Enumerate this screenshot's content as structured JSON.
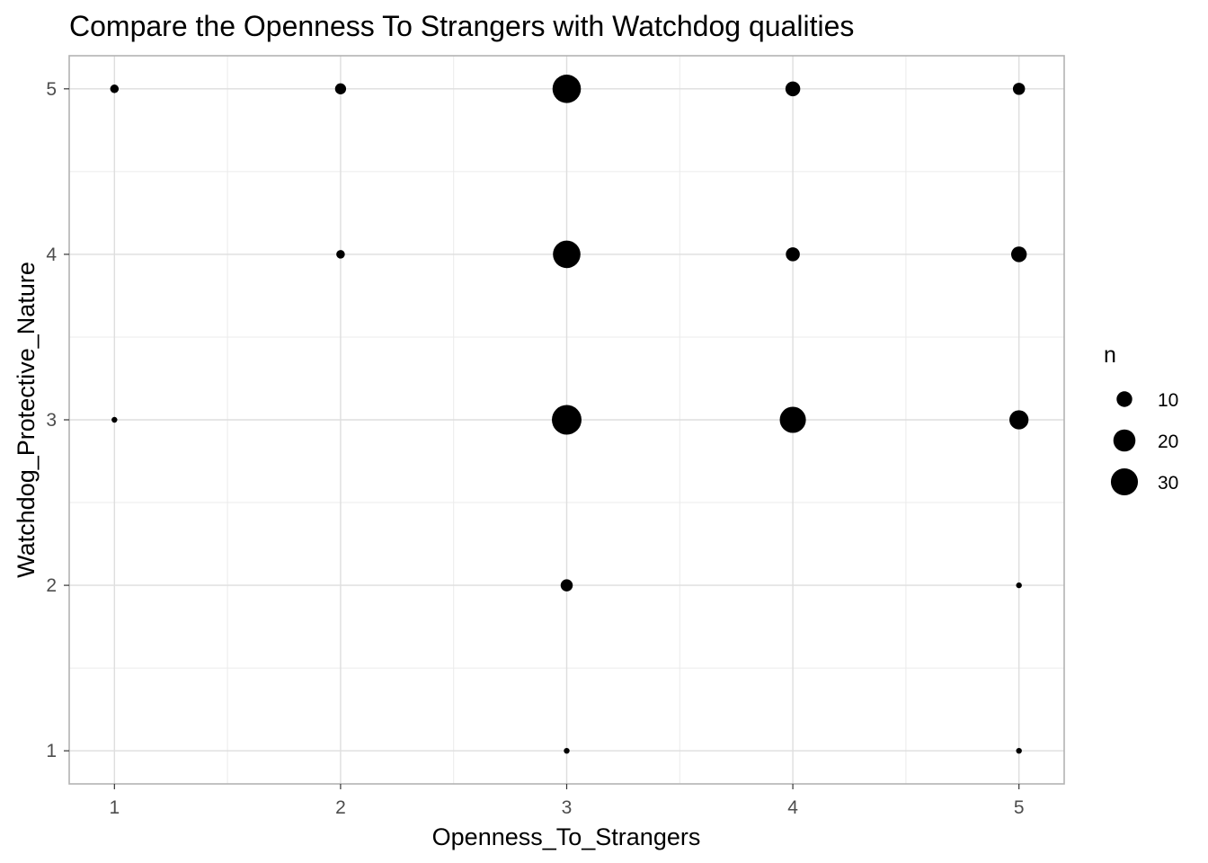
{
  "chart_data": {
    "type": "scatter",
    "title": "Compare the Openness To Strangers with Watchdog qualities",
    "xlabel": "Openness_To_Strangers",
    "ylabel": "Watchdog_Protective_Nature",
    "x_ticks": [
      1,
      2,
      3,
      4,
      5
    ],
    "y_ticks": [
      1,
      2,
      3,
      4,
      5
    ],
    "xlim": [
      0.8,
      5.2
    ],
    "ylim": [
      0.8,
      5.2
    ],
    "grid": true,
    "legend_placement": "right",
    "size_legend": {
      "title": "n",
      "values": [
        10,
        20,
        30
      ]
    },
    "point_color": "#000000",
    "points": [
      {
        "x": 1,
        "y": 5,
        "n": 3
      },
      {
        "x": 2,
        "y": 5,
        "n": 5
      },
      {
        "x": 3,
        "y": 5,
        "n": 33
      },
      {
        "x": 4,
        "y": 5,
        "n": 9
      },
      {
        "x": 5,
        "y": 5,
        "n": 6
      },
      {
        "x": 2,
        "y": 4,
        "n": 3
      },
      {
        "x": 3,
        "y": 4,
        "n": 31
      },
      {
        "x": 4,
        "y": 4,
        "n": 8
      },
      {
        "x": 5,
        "y": 4,
        "n": 10
      },
      {
        "x": 1,
        "y": 3,
        "n": 1
      },
      {
        "x": 3,
        "y": 3,
        "n": 36
      },
      {
        "x": 4,
        "y": 3,
        "n": 28
      },
      {
        "x": 5,
        "y": 3,
        "n": 15
      },
      {
        "x": 3,
        "y": 2,
        "n": 6
      },
      {
        "x": 5,
        "y": 2,
        "n": 1
      },
      {
        "x": 3,
        "y": 1,
        "n": 1
      },
      {
        "x": 5,
        "y": 1,
        "n": 1
      }
    ]
  }
}
